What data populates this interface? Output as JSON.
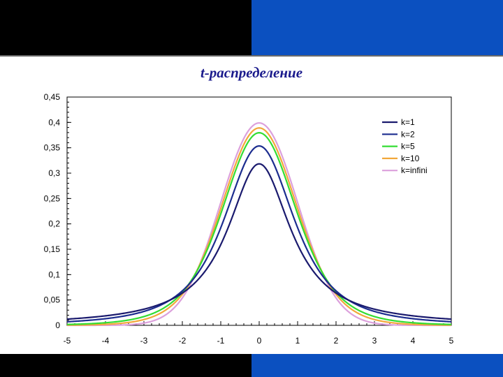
{
  "chart_data": {
    "type": "line",
    "title": "t-распределение",
    "xlabel": "",
    "ylabel": "",
    "xlim": [
      -5,
      5
    ],
    "ylim": [
      0,
      0.45
    ],
    "x_ticks": [
      "-5",
      "-4",
      "-3",
      "-2",
      "-1",
      "0",
      "1",
      "2",
      "3",
      "4",
      "5"
    ],
    "y_ticks": [
      "0",
      "0,05",
      "0,1",
      "0,15",
      "0,2",
      "0,25",
      "0,3",
      "0,35",
      "0,4",
      "0,45"
    ],
    "grid": false,
    "legend_position": "top-right",
    "series": [
      {
        "name": "k=1",
        "df": 1,
        "color": "#1a1a6e",
        "x": [
          -5,
          -4,
          -3,
          -2,
          -1,
          0,
          1,
          2,
          3,
          4,
          5
        ],
        "y": [
          0.0122,
          0.0187,
          0.0318,
          0.0637,
          0.1592,
          0.3183,
          0.1592,
          0.0637,
          0.0318,
          0.0187,
          0.0122
        ]
      },
      {
        "name": "k=2",
        "df": 2,
        "color": "#1c2d8f",
        "x": [
          -5,
          -4,
          -3,
          -2,
          -1,
          0,
          1,
          2,
          3,
          4,
          5
        ],
        "y": [
          0.0071,
          0.0131,
          0.0274,
          0.068,
          0.1925,
          0.3536,
          0.1925,
          0.068,
          0.0274,
          0.0131,
          0.0071
        ]
      },
      {
        "name": "k=5",
        "df": 5,
        "color": "#33dd33",
        "x": [
          -5,
          -4,
          -3,
          -2,
          -1,
          0,
          1,
          2,
          3,
          4,
          5
        ],
        "y": [
          0.0018,
          0.0051,
          0.0173,
          0.0651,
          0.2197,
          0.3796,
          0.2197,
          0.0651,
          0.0173,
          0.0051,
          0.0018
        ]
      },
      {
        "name": "k=10",
        "df": 10,
        "color": "#f2a83a",
        "x": [
          -5,
          -4,
          -3,
          -2,
          -1,
          0,
          1,
          2,
          3,
          4,
          5
        ],
        "y": [
          0.0004,
          0.002,
          0.0114,
          0.0611,
          0.2304,
          0.3891,
          0.2304,
          0.0611,
          0.0114,
          0.002,
          0.0004
        ]
      },
      {
        "name": "k=infini",
        "df": null,
        "color": "#dca0dc",
        "x": [
          -5,
          -4,
          -3,
          -2,
          -1,
          0,
          1,
          2,
          3,
          4,
          5
        ],
        "y": [
          0.0,
          0.0001,
          0.0044,
          0.054,
          0.242,
          0.3989,
          0.242,
          0.054,
          0.0044,
          0.0001,
          0.0
        ]
      }
    ]
  }
}
